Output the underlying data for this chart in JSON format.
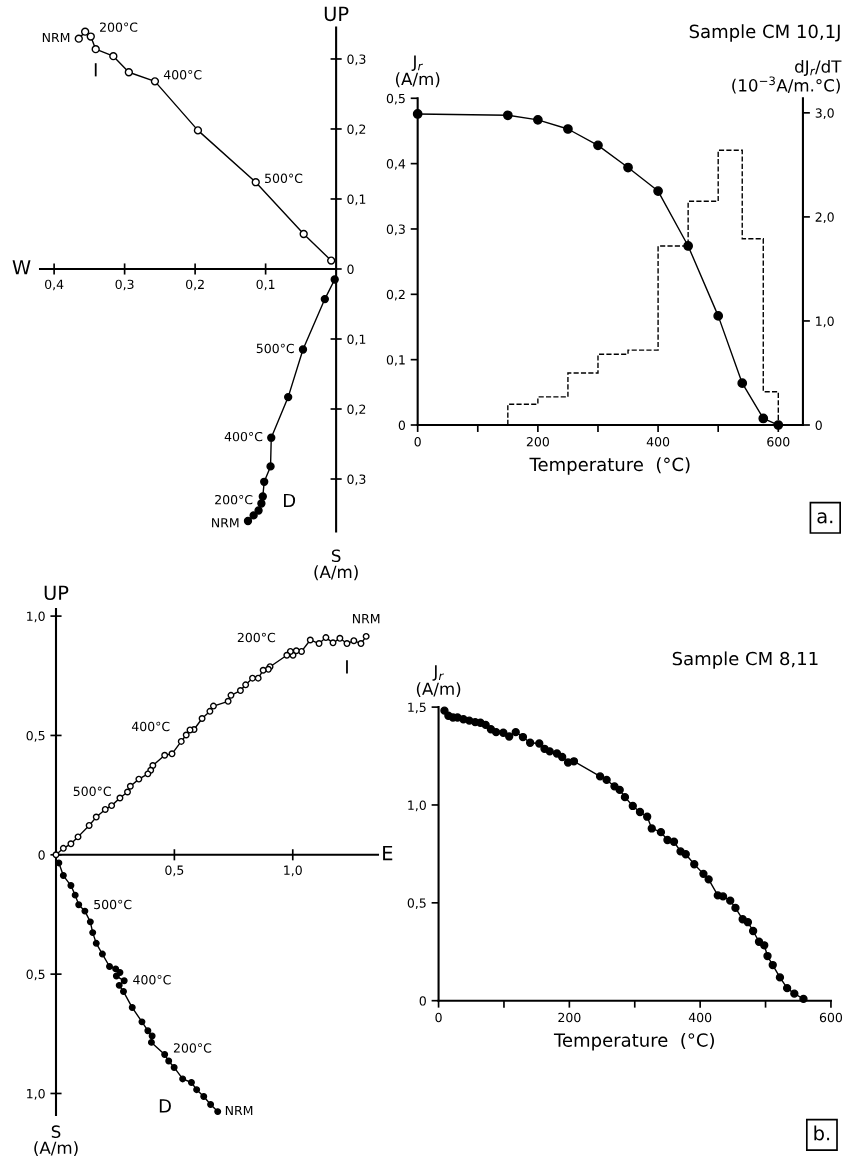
{
  "chart_data": [
    {
      "type": "line",
      "xlabel": "W",
      "ylabel": "UP",
      "xlim": [
        0.42,
        0
      ],
      "ylim": [
        -0.375,
        0.345
      ],
      "xticks": [
        {
          "value": 0.4,
          "label": "0,4"
        },
        {
          "value": 0.3,
          "label": "0,3"
        },
        {
          "value": 0.2,
          "label": "0,2"
        },
        {
          "value": 0.1,
          "label": "0,1"
        }
      ],
      "yticks": [
        {
          "value": 0.3,
          "label": "0,3"
        },
        {
          "value": 0.2,
          "label": "0,2"
        },
        {
          "value": 0.1,
          "label": "0,1"
        },
        {
          "value": 0,
          "label": "0"
        },
        {
          "value": -0.1,
          "label": "0,1"
        },
        {
          "value": -0.2,
          "label": "0,2"
        },
        {
          "value": -0.3,
          "label": "0,3"
        }
      ],
      "series": [
        {
          "type": "line",
          "color": "#000000",
          "marker": "circle",
          "x": [
            0.365,
            0.356,
            0.348,
            0.341,
            0.316,
            0.294,
            0.257,
            0.196,
            0.114,
            0.046,
            0.007
          ],
          "values": [
            0.329,
            0.339,
            0.332,
            0.314,
            0.304,
            0.281,
            0.268,
            0.198,
            0.124,
            0.05,
            0.012
          ]
        },
        {
          "type": "line",
          "color": "#000000",
          "marker": "circle",
          "x": [
            0.002,
            0.016,
            0.047,
            0.068,
            0.092,
            0.093,
            0.102,
            0.104,
            0.106,
            0.11,
            0.117,
            0.125
          ],
          "values": [
            -0.015,
            -0.043,
            -0.115,
            -0.183,
            -0.241,
            -0.282,
            -0.304,
            -0.325,
            -0.335,
            -0.345,
            -0.352,
            -0.36
          ]
        }
      ],
      "annotations": [
        {
          "text": "NRM",
          "x": 0.365,
          "y": 0.329
        },
        {
          "text": "200°C",
          "x": 0.348,
          "y": 0.332
        },
        {
          "text": "I",
          "x": 0.341,
          "y": 0.314
        },
        {
          "text": "400°C",
          "x": 0.257,
          "y": 0.268
        },
        {
          "text": "500°C",
          "x": 0.114,
          "y": 0.124
        },
        {
          "text": "500°C",
          "x": 0.047,
          "y": -0.115
        },
        {
          "text": "400°C",
          "x": 0.092,
          "y": -0.241
        },
        {
          "text": "200°C",
          "x": 0.106,
          "y": -0.335
        },
        {
          "text": "D",
          "x": 0.104,
          "y": -0.325
        },
        {
          "text": "NRM",
          "x": 0.125,
          "y": -0.36
        },
        "S\n(A/m)"
      ]
    },
    {
      "type": "line",
      "title": "Sample CM 10,1J",
      "xlabel": "Temperature  (°C)",
      "ylabel": "J$_{r}$\n(A/m)",
      "y2label": "dJ$_{r}$/dT\n(10$^{−3}$A/m.°C)",
      "xlim": [
        0,
        641
      ],
      "ylim": [
        0,
        0.5
      ],
      "y2lim": [
        0,
        3.14
      ],
      "xticks": [
        0,
        {
          "value": 100,
          "label": null
        },
        200,
        {
          "value": 300,
          "label": null
        },
        400,
        {
          "value": 500,
          "label": null
        },
        600
      ],
      "yticks": [
        0,
        {
          "value": 0.1,
          "label": "0,1"
        },
        {
          "value": 0.2,
          "label": "0,2"
        },
        {
          "value": 0.3,
          "label": "0,3"
        },
        {
          "value": 0.4,
          "label": "0,4"
        },
        {
          "value": 0.5,
          "label": "0,5"
        }
      ],
      "y2ticks": [
        0,
        {
          "value": 1,
          "label": "1,0"
        },
        {
          "value": 2,
          "label": "2,0"
        },
        {
          "value": 3,
          "label": "3,0"
        }
      ],
      "series": [
        {
          "type": "line",
          "color": "#000000",
          "marker": "circle",
          "x": [
            0,
            150,
            200,
            250,
            300,
            350,
            400,
            450,
            500,
            540,
            575,
            600
          ],
          "values": [
            0.476,
            0.474,
            0.467,
            0.453,
            0.428,
            0.394,
            0.358,
            0.274,
            0.167,
            0.064,
            0.01,
            0
          ]
        },
        {
          "type": "histogram",
          "axis": "y2",
          "color": "#000000",
          "line_style": "dashed",
          "bins": [
            150,
            200,
            250,
            300,
            350,
            400,
            450,
            500,
            540,
            575,
            600
          ],
          "values": [
            0.2,
            0.27,
            0.5,
            0.68,
            0.72,
            1.72,
            2.15,
            2.64,
            1.79,
            0.32
          ]
        }
      ],
      "annotations": [
        "a."
      ]
    },
    {
      "type": "line",
      "xlabel": "E",
      "ylabel": "UP",
      "xlim": [
        0,
        1.36
      ],
      "ylim": [
        -1.09,
        1.03
      ],
      "xticks": [
        {
          "value": 0.5,
          "label": "0,5"
        },
        {
          "value": 1.0,
          "label": "1,0"
        }
      ],
      "yticks": [
        {
          "value": 1.0,
          "label": "1,0"
        },
        {
          "value": 0.5,
          "label": "0,5"
        },
        {
          "value": 0,
          "label": "0"
        },
        {
          "value": -0.5,
          "label": "0,5"
        },
        {
          "value": -1.0,
          "label": "1,0"
        }
      ],
      "series": [
        {
          "type": "line",
          "color": "#000000",
          "marker": "circle",
          "x": [
            1.31,
            1.288,
            1.258,
            1.229,
            1.199,
            1.17,
            1.14,
            1.111,
            1.074,
            1.037,
            1.015,
            1.001,
            0.99,
            0.975,
            0.904,
            0.897,
            0.875,
            0.854,
            0.83,
            0.801,
            0.779,
            0.739,
            0.727,
            0.665,
            0.65,
            0.617,
            0.583,
            0.566,
            0.55,
            0.529,
            0.49,
            0.459,
            0.409,
            0.4,
            0.388,
            0.35,
            0.314,
            0.302,
            0.27,
            0.235,
            0.208,
            0.17,
            0.14,
            0.093,
            0.063,
            0.031,
            0
          ],
          "values": [
            0.915,
            0.885,
            0.897,
            0.885,
            0.907,
            0.888,
            0.91,
            0.885,
            0.9,
            0.852,
            0.855,
            0.836,
            0.852,
            0.836,
            0.788,
            0.777,
            0.773,
            0.74,
            0.74,
            0.712,
            0.688,
            0.668,
            0.643,
            0.623,
            0.601,
            0.571,
            0.525,
            0.523,
            0.502,
            0.475,
            0.423,
            0.417,
            0.374,
            0.354,
            0.339,
            0.317,
            0.287,
            0.263,
            0.238,
            0.206,
            0.19,
            0.158,
            0.123,
            0.075,
            0.046,
            0.027,
            0
          ]
        },
        {
          "type": "line",
          "color": "#000000",
          "marker": "circle",
          "x": [
            0.683,
            0.653,
            0.624,
            0.594,
            0.572,
            0.535,
            0.499,
            0.476,
            0.459,
            0.403,
            0.406,
            0.388,
            0.363,
            0.322,
            0.285,
            0.267,
            0.288,
            0.255,
            0.27,
            0.252,
            0.226,
            0.196,
            0.17,
            0.155,
            0.145,
            0.122,
            0.096,
            0.081,
            0.063,
            0.031,
            0.012
          ],
          "values": [
            -1.076,
            -1.046,
            -1.013,
            -0.984,
            -0.954,
            -0.939,
            -0.891,
            -0.864,
            -0.837,
            -0.786,
            -0.759,
            -0.737,
            -0.7,
            -0.64,
            -0.573,
            -0.547,
            -0.528,
            -0.508,
            -0.493,
            -0.478,
            -0.468,
            -0.416,
            -0.371,
            -0.326,
            -0.281,
            -0.236,
            -0.209,
            -0.169,
            -0.129,
            -0.087,
            -0.034
          ]
        }
      ],
      "annotations": [
        {
          "text": "200°C",
          "x": 0.975,
          "y": 0.836
        },
        {
          "text": "NRM",
          "x": 1.31,
          "y": 0.915
        },
        {
          "text": "I",
          "x": 1.229,
          "y": 0.885
        },
        {
          "text": "400°C",
          "x": 0.529,
          "y": 0.475
        },
        {
          "text": "500°C",
          "x": 0.27,
          "y": 0.238
        },
        {
          "text": "500°C",
          "x": 0.122,
          "y": -0.236
        },
        {
          "text": "400°C",
          "x": 0.288,
          "y": -0.528
        },
        {
          "text": "200°C",
          "x": 0.459,
          "y": -0.837
        },
        {
          "text": "D",
          "x": 0.572,
          "y": -0.954
        },
        {
          "text": "NRM",
          "x": 0.683,
          "y": -1.076
        },
        "S\n(A/m)"
      ]
    },
    {
      "type": "line",
      "title": "Sample CM 8,11",
      "xlabel": "Temperature  (°C)",
      "ylabel": "J$_{r}$\n(A/m)",
      "xlim": [
        0,
        600
      ],
      "ylim": [
        0,
        1.5
      ],
      "xticks": [
        0,
        {
          "value": 100,
          "label": null
        },
        200,
        {
          "value": 300,
          "label": null
        },
        400,
        {
          "value": 500,
          "label": null
        },
        600
      ],
      "yticks": [
        0,
        {
          "value": 0.5,
          "label": "0,5"
        },
        {
          "value": 1.0,
          "label": "1,0"
        },
        {
          "value": 1.5,
          "label": "1,5"
        }
      ],
      "series": [
        {
          "type": "line",
          "color": "#000000",
          "marker": "circle",
          "x": [
            9,
            15,
            22,
            29,
            38,
            47,
            56,
            64,
            72,
            80,
            88,
            99,
            108,
            118,
            129,
            140,
            154,
            162,
            170,
            181,
            189,
            198,
            207,
            247,
            257,
            269,
            277,
            285,
            297,
            308,
            319,
            326,
            340,
            350,
            360,
            370,
            378,
            391,
            405,
            413,
            427,
            435,
            446,
            454,
            465,
            473,
            481,
            490,
            498,
            503,
            511,
            522,
            533,
            544,
            558
          ],
          "values": [
            1.482,
            1.456,
            1.447,
            1.447,
            1.438,
            1.431,
            1.423,
            1.42,
            1.409,
            1.387,
            1.372,
            1.369,
            1.35,
            1.372,
            1.347,
            1.318,
            1.314,
            1.287,
            1.274,
            1.263,
            1.245,
            1.217,
            1.223,
            1.146,
            1.128,
            1.095,
            1.077,
            1.04,
            0.995,
            0.964,
            0.94,
            0.88,
            0.861,
            0.821,
            0.812,
            0.763,
            0.748,
            0.697,
            0.648,
            0.62,
            0.538,
            0.533,
            0.511,
            0.474,
            0.416,
            0.401,
            0.356,
            0.301,
            0.283,
            0.228,
            0.182,
            0.119,
            0.064,
            0.036,
            0.009
          ]
        }
      ],
      "annotations": [
        "b."
      ]
    }
  ]
}
